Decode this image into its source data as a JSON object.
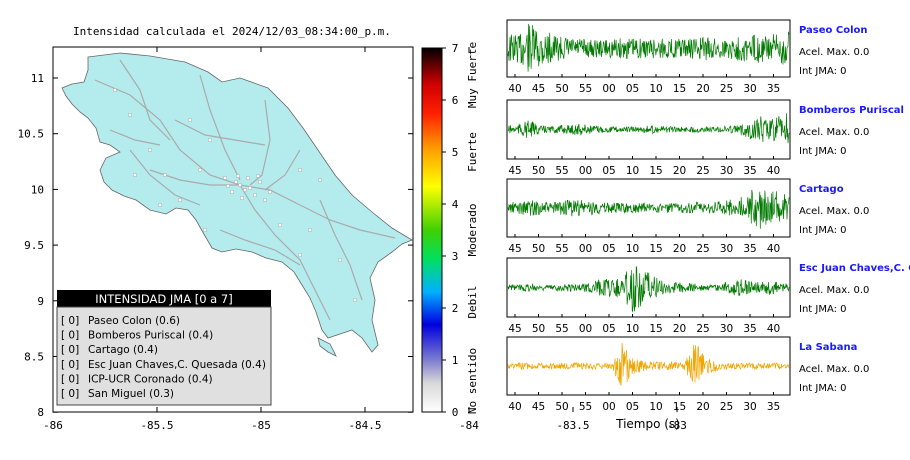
{
  "map": {
    "title": "Intensidad calculada el 2024/12/03_08:34:00_p.m.",
    "xticks": [
      "-86",
      "-85.5",
      "-85",
      "-84.5",
      "-84",
      "-83.5",
      "-83"
    ],
    "yticks": [
      "11",
      "10.5",
      "10",
      "9.5",
      "9",
      "8.5",
      "8"
    ],
    "land_color": "#b4ecee"
  },
  "legend": {
    "header": "INTENSIDAD JMA [0 a 7]",
    "items": [
      {
        "level": "[ 0]",
        "label": "Paseo Colon (0.6)"
      },
      {
        "level": "[ 0]",
        "label": "Bomberos Puriscal (0.4)"
      },
      {
        "level": "[ 0]",
        "label": "Cartago (0.4)"
      },
      {
        "level": "[ 0]",
        "label": "Esc Juan Chaves,C. Quesada (0.4)"
      },
      {
        "level": "[ 0]",
        "label": "ICP-UCR Coronado (0.4)"
      },
      {
        "level": "[ 0]",
        "label": "San Miguel (0.3)"
      }
    ]
  },
  "colorbar": {
    "ticks": [
      "0",
      "1",
      "2",
      "3",
      "4",
      "5",
      "6",
      "7"
    ],
    "categories": [
      "No sentido",
      "Debil",
      "Moderado",
      "Fuerte",
      "Muy Fuerte"
    ]
  },
  "chart_data": [
    {
      "type": "line",
      "station": "Paseo Colon",
      "color": "#007a00",
      "time_ticks": [
        "40",
        "45",
        "50",
        "55",
        "00",
        "05",
        "10",
        "15",
        "20",
        "25",
        "30",
        "35"
      ],
      "accel_label": "Acel. Max. 0.0",
      "int_label": "Int JMA: 0",
      "envelope": [
        0.6,
        0.55,
        0.95,
        0.8,
        0.6,
        0.45,
        0.4,
        0.38,
        0.35,
        0.33,
        0.35,
        0.4,
        0.38,
        0.36,
        0.4,
        0.38,
        0.35,
        0.38,
        0.42,
        0.45,
        0.4,
        0.38,
        0.45,
        0.5,
        0.55,
        0.5,
        0.6,
        0.85
      ]
    },
    {
      "type": "line",
      "station": "Bomberos Puriscal",
      "color": "#007a00",
      "time_ticks": [
        "45",
        "50",
        "55",
        "00",
        "05",
        "10",
        "15",
        "20",
        "25",
        "30",
        "35",
        "40"
      ],
      "accel_label": "Acel. Max. 0.0",
      "int_label": "Int JMA: 0",
      "envelope": [
        0.15,
        0.2,
        0.35,
        0.15,
        0.12,
        0.15,
        0.18,
        0.25,
        0.15,
        0.12,
        0.12,
        0.1,
        0.1,
        0.12,
        0.15,
        0.12,
        0.1,
        0.1,
        0.12,
        0.1,
        0.1,
        0.12,
        0.15,
        0.3,
        0.55,
        0.35,
        0.5,
        0.65
      ]
    },
    {
      "type": "line",
      "station": "Cartago",
      "color": "#007a00",
      "time_ticks": [
        "45",
        "50",
        "55",
        "00",
        "05",
        "10",
        "15",
        "20",
        "25",
        "30",
        "35",
        "40"
      ],
      "accel_label": "Acel. Max. 0.0",
      "int_label": "Int JMA: 0",
      "envelope": [
        0.2,
        0.25,
        0.3,
        0.25,
        0.2,
        0.25,
        0.3,
        0.35,
        0.25,
        0.2,
        0.2,
        0.18,
        0.18,
        0.2,
        0.2,
        0.18,
        0.18,
        0.2,
        0.22,
        0.2,
        0.25,
        0.3,
        0.35,
        0.5,
        0.95,
        0.6,
        0.7,
        0.4
      ]
    },
    {
      "type": "line",
      "station": "Esc Juan Chaves,C. Qu",
      "color": "#007a00",
      "time_ticks": [
        "45",
        "50",
        "55",
        "00",
        "05",
        "10",
        "15",
        "20",
        "25",
        "30",
        "35",
        "40"
      ],
      "accel_label": "Acel. Max. 0.0",
      "int_label": "Int JMA: 0",
      "envelope": [
        0.1,
        0.12,
        0.15,
        0.12,
        0.1,
        0.12,
        0.15,
        0.12,
        0.25,
        0.3,
        0.35,
        0.45,
        0.95,
        0.7,
        0.4,
        0.25,
        0.2,
        0.18,
        0.15,
        0.12,
        0.12,
        0.2,
        0.35,
        0.25,
        0.2,
        0.3,
        0.2,
        0.15
      ]
    },
    {
      "type": "line",
      "station": "La Sabana",
      "color": "#f0a500",
      "time_ticks": [
        "40",
        "45",
        "50",
        "55",
        "00",
        "05",
        "10",
        "15",
        "20",
        "25",
        "30",
        "35"
      ],
      "accel_label": "Acel. Max. 0.0",
      "int_label": "Int JMA: 0",
      "xlabel": "Tiempo (s)",
      "envelope": [
        0.1,
        0.12,
        0.12,
        0.1,
        0.1,
        0.12,
        0.12,
        0.12,
        0.12,
        0.12,
        0.12,
        0.95,
        0.3,
        0.2,
        0.2,
        0.15,
        0.15,
        0.18,
        0.95,
        0.3,
        0.2,
        0.15,
        0.12,
        0.12,
        0.12,
        0.1,
        0.12,
        0.1
      ]
    }
  ]
}
